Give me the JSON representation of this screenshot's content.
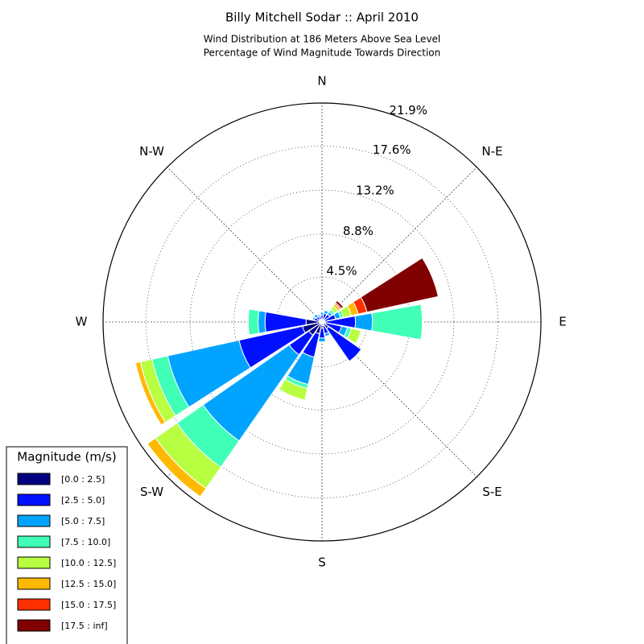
{
  "chart_data": {
    "type": "windrose",
    "title": "Billy Mitchell Sodar :: April 2010",
    "subtitle": [
      "Wind Distribution at 186 Meters Above Sea Level",
      "Percentage of Wind Magnitude Towards Direction"
    ],
    "categories": [
      "N",
      null,
      "N-E",
      null,
      "E",
      null,
      "S-E",
      null,
      "S",
      null,
      "S-W",
      null,
      "W",
      null,
      "N-W",
      null
    ],
    "ylim": [
      0,
      21.9
    ],
    "yticks": [
      {
        "value": 4.5,
        "label": "4.5%"
      },
      {
        "value": 8.8,
        "label": "8.8%"
      },
      {
        "value": 13.2,
        "label": "13.2%"
      },
      {
        "value": 17.6,
        "label": "17.6%"
      },
      {
        "value": 21.9,
        "label": "21.9%"
      }
    ],
    "grid": true,
    "legend": {
      "title": "Magnitude (m/s)",
      "position": "lower left"
    },
    "series": [
      {
        "name": "[0.0 : 2.5]",
        "color": "#000080",
        "values": [
          0.2,
          0.3,
          0.25,
          0.3,
          0.25,
          0.4,
          0.8,
          0.4,
          0.6,
          1.2,
          1.6,
          2.0,
          1.6,
          0.3,
          0.3,
          0.2
        ]
      },
      {
        "name": "[2.5 : 5.0]",
        "color": "#0010ff",
        "values": [
          0.5,
          0.6,
          0.7,
          1.1,
          3.1,
          1.6,
          4.0,
          0.8,
          1.0,
          2.4,
          2.4,
          6.5,
          4.1,
          0.5,
          0.4,
          0.4
        ]
      },
      {
        "name": "[5.0 : 7.5]",
        "color": "#00a4ff",
        "values": [
          0.3,
          0.3,
          0.3,
          0.5,
          1.7,
          0.6,
          0,
          0.3,
          0.4,
          2.8,
          10.5,
          7.3,
          0.7,
          0.2,
          0.3,
          0.2
        ]
      },
      {
        "name": "[7.5 : 10.0]",
        "color": "#40ffb7",
        "values": [
          0,
          0.1,
          0.3,
          0.3,
          5.0,
          0.4,
          0,
          0,
          0,
          0.4,
          3.2,
          1.6,
          1.0,
          0,
          0,
          0
        ]
      },
      {
        "name": "[10.0 : 12.5]",
        "color": "#b7ff40",
        "values": [
          0,
          0,
          0.4,
          0.8,
          0,
          1.0,
          0,
          0,
          0,
          1.2,
          2.6,
          1.2,
          0,
          0,
          0,
          0
        ]
      },
      {
        "name": "[12.5 : 15.0]",
        "color": "#ffb900",
        "values": [
          0,
          0,
          0.25,
          0.7,
          0,
          0,
          0,
          0,
          0,
          0,
          1.0,
          0.5,
          0,
          0,
          0,
          0
        ]
      },
      {
        "name": "[15.0 : 17.5]",
        "color": "#ff3000",
        "values": [
          0,
          0,
          0.15,
          0.9,
          0,
          0,
          0,
          0,
          0,
          0,
          0,
          0,
          0,
          0,
          0,
          0
        ]
      },
      {
        "name": "[17.5 : inf]",
        "color": "#800000",
        "values": [
          0,
          0,
          0.25,
          7.3,
          0,
          0,
          0,
          0,
          0,
          0,
          0,
          0,
          0,
          0,
          0,
          0
        ]
      }
    ]
  }
}
